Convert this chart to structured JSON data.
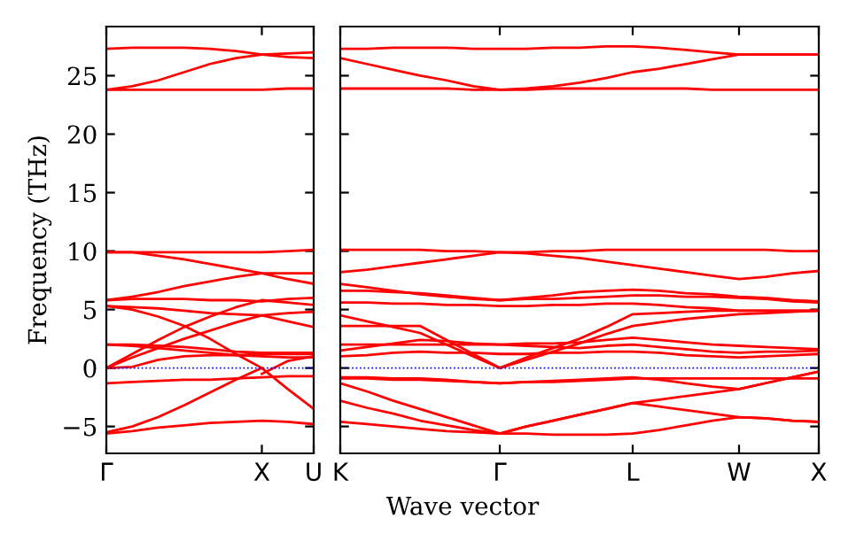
{
  "chart_data": [
    {
      "type": "line",
      "ylabel": "Frequency (THz)",
      "ylim": [
        -7.3,
        29.2
      ],
      "yticks": [
        {
          "value": -5,
          "label": "−5"
        },
        0,
        5,
        10,
        15,
        20,
        25
      ],
      "categories": [
        "Γ",
        null,
        null,
        null,
        null,
        null,
        "X",
        null,
        "U"
      ],
      "grid": false,
      "marker": "none",
      "line_style": "solid",
      "ref_lines": [
        {
          "axis": "y",
          "value": 0,
          "color": "#0000ff",
          "line_style": "dotted"
        }
      ],
      "series": [
        {
          "color": "#ff0000",
          "values": [
            27.3,
            27.4,
            27.4,
            27.4,
            27.3,
            27.1,
            26.8,
            26.6,
            26.5
          ]
        },
        {
          "color": "#ff0000",
          "values": [
            23.8,
            24.1,
            24.6,
            25.3,
            26.0,
            26.5,
            26.8,
            26.9,
            27.0
          ]
        },
        {
          "color": "#ff0000",
          "values": [
            23.8,
            23.8,
            23.8,
            23.8,
            23.8,
            23.8,
            23.8,
            23.9,
            23.9
          ]
        },
        {
          "color": "#ff0000",
          "values": [
            9.9,
            9.9,
            9.6,
            9.3,
            8.9,
            8.5,
            8.1,
            7.6,
            7.2
          ]
        },
        {
          "color": "#ff0000",
          "values": [
            9.9,
            9.9,
            9.9,
            9.9,
            9.9,
            9.9,
            9.9,
            10.0,
            10.1
          ]
        },
        {
          "color": "#ff0000",
          "values": [
            5.8,
            6.1,
            6.5,
            7.0,
            7.4,
            7.8,
            8.1,
            8.1,
            8.1
          ]
        },
        {
          "color": "#ff0000",
          "values": [
            5.8,
            5.9,
            5.9,
            5.9,
            5.8,
            5.8,
            5.7,
            5.9,
            6.0
          ]
        },
        {
          "color": "#ff0000",
          "values": [
            5.3,
            5.2,
            5.1,
            4.9,
            4.7,
            4.6,
            4.5,
            4.0,
            3.5
          ]
        },
        {
          "color": "#ff0000",
          "values": [
            0,
            1.2,
            2.4,
            3.5,
            4.4,
            5.2,
            5.8,
            5.6,
            5.4
          ]
        },
        {
          "color": "#ff0000",
          "values": [
            0,
            0.9,
            1.7,
            2.5,
            3.2,
            3.9,
            4.5,
            4.7,
            4.8
          ]
        },
        {
          "color": "#ff0000",
          "values": [
            2.0,
            2.0,
            1.9,
            1.8,
            1.6,
            1.4,
            1.3,
            1.3,
            1.3
          ]
        },
        {
          "color": "#ff0000",
          "values": [
            2.0,
            1.9,
            1.7,
            1.5,
            1.3,
            1.1,
            1.0,
            0.9,
            0.9
          ]
        },
        {
          "color": "#ff0000",
          "values": [
            0,
            0.1,
            0.7,
            1.0,
            1.1,
            1.1,
            1.2,
            1.2,
            1.2
          ]
        },
        {
          "color": "#ff0000",
          "values": [
            -1.3,
            -1.2,
            -1.1,
            -1.0,
            -1.0,
            -0.9,
            -0.8,
            -0.7,
            -0.7
          ]
        },
        {
          "color": "#ff0000",
          "values": [
            -5.6,
            -5.4,
            -5.1,
            -4.9,
            -4.7,
            -4.6,
            -4.5,
            -4.6,
            -4.8
          ]
        },
        {
          "color": "#ff0000",
          "values": [
            null,
            null,
            null,
            null,
            null,
            null,
            -0.5,
            0.6,
            1.0
          ]
        },
        {
          "color": "#ff0000",
          "values": [
            5.3,
            5.0,
            4.4,
            3.6,
            2.5,
            1.2,
            0,
            -1.8,
            -3.5
          ]
        },
        {
          "color": "#ff0000",
          "values": [
            -5.5,
            -5.0,
            -4.2,
            -3.2,
            -2.1,
            -1.0,
            0,
            null,
            null
          ]
        }
      ]
    },
    {
      "type": "line",
      "xlabel": "Wave vector",
      "ylim": [
        -7.3,
        29.2
      ],
      "tick_labels": "x",
      "categories": [
        "K",
        null,
        null,
        null,
        null,
        null,
        "Γ",
        null,
        null,
        null,
        null,
        "L",
        null,
        null,
        null,
        "W",
        null,
        null,
        "X"
      ],
      "yticks": [
        {
          "value": -5,
          "label": null
        },
        {
          "value": 0,
          "label": null
        },
        {
          "value": 5,
          "label": null
        },
        {
          "value": 10,
          "label": null
        },
        {
          "value": 15,
          "label": null
        },
        {
          "value": 20,
          "label": null
        },
        {
          "value": 25,
          "label": null
        }
      ],
      "grid": false,
      "marker": "none",
      "line_style": "solid",
      "ref_lines": [
        {
          "axis": "y",
          "value": 0,
          "color": "#0000ff",
          "line_style": "dotted"
        }
      ],
      "series": [
        {
          "color": "#ff0000",
          "values": [
            27.3,
            27.3,
            27.4,
            27.4,
            27.4,
            27.3,
            27.3,
            27.3,
            27.4,
            27.4,
            27.5,
            27.5,
            27.4,
            27.2,
            27.0,
            26.8,
            26.8,
            26.8,
            26.8
          ]
        },
        {
          "color": "#ff0000",
          "values": [
            26.5,
            26.0,
            25.5,
            25.0,
            24.6,
            24.1,
            23.8,
            23.9,
            24.1,
            24.4,
            24.8,
            25.3,
            25.6,
            26.0,
            26.4,
            26.8,
            26.8,
            26.8,
            26.8
          ]
        },
        {
          "color": "#ff0000",
          "values": [
            23.9,
            23.9,
            23.9,
            23.9,
            23.9,
            23.8,
            23.8,
            23.8,
            23.9,
            23.9,
            23.9,
            23.9,
            23.9,
            23.9,
            23.8,
            23.8,
            23.8,
            23.8,
            23.8
          ]
        },
        {
          "color": "#ff0000",
          "values": [
            10.1,
            10.1,
            10.1,
            10.1,
            10.0,
            10.0,
            9.9,
            9.9,
            10.0,
            10.0,
            10.1,
            10.1,
            10.1,
            10.1,
            10.1,
            10.1,
            10.1,
            10.0,
            10.0
          ]
        },
        {
          "color": "#ff0000",
          "values": [
            8.2,
            8.4,
            8.7,
            9.0,
            9.3,
            9.6,
            9.9,
            9.8,
            9.6,
            9.4,
            9.1,
            8.8,
            8.5,
            8.2,
            7.9,
            7.6,
            7.8,
            8.1,
            8.3
          ]
        },
        {
          "color": "#ff0000",
          "values": [
            6.6,
            6.6,
            6.5,
            6.4,
            6.2,
            6.0,
            5.8,
            6.0,
            6.2,
            6.5,
            6.6,
            6.7,
            6.6,
            6.4,
            6.3,
            6.1,
            6.0,
            5.8,
            5.7
          ]
        },
        {
          "color": "#ff0000",
          "values": [
            7.2,
            6.9,
            6.6,
            6.3,
            6.1,
            5.9,
            5.8,
            5.9,
            5.9,
            6.0,
            6.1,
            6.2,
            6.2,
            6.1,
            6.1,
            6.0,
            5.9,
            5.7,
            5.6
          ]
        },
        {
          "color": "#ff0000",
          "values": [
            5.6,
            5.6,
            5.5,
            5.5,
            5.4,
            5.4,
            5.3,
            5.3,
            5.4,
            5.4,
            5.5,
            5.5,
            5.4,
            5.2,
            5.1,
            4.9,
            4.9,
            4.9,
            4.9
          ]
        },
        {
          "color": "#ff0000",
          "values": [
            4.5,
            4.0,
            3.5,
            3.0,
            2.0,
            1.0,
            0,
            0.9,
            1.7,
            2.5,
            3.5,
            4.6,
            4.7,
            4.8,
            4.9,
            4.9,
            4.9,
            4.9,
            4.9
          ]
        },
        {
          "color": "#ff0000",
          "values": [
            3.6,
            3.6,
            3.6,
            3.6,
            2.4,
            1.2,
            0,
            0.7,
            1.4,
            2.1,
            2.9,
            3.6,
            3.9,
            4.2,
            4.4,
            4.6,
            4.7,
            4.8,
            4.9
          ]
        },
        {
          "color": "#ff0000",
          "values": [
            2.0,
            2.0,
            2.0,
            2.0,
            2.0,
            2.0,
            2.0,
            2.1,
            2.1,
            2.2,
            2.4,
            2.6,
            2.4,
            2.2,
            2.0,
            1.9,
            1.8,
            1.7,
            1.6
          ]
        },
        {
          "color": "#ff0000",
          "values": [
            1.5,
            1.8,
            2.1,
            2.4,
            2.3,
            2.1,
            2.0,
            1.9,
            1.8,
            1.7,
            1.9,
            2.0,
            1.8,
            1.6,
            1.4,
            1.3,
            1.4,
            1.4,
            1.5
          ]
        },
        {
          "color": "#ff0000",
          "values": [
            1.0,
            1.1,
            1.3,
            1.4,
            1.3,
            1.3,
            1.2,
            1.2,
            1.3,
            1.3,
            1.4,
            1.4,
            1.3,
            1.1,
            1.0,
            0.9,
            1.0,
            1.1,
            1.2
          ]
        },
        {
          "color": "#ff0000",
          "values": [
            -0.8,
            -0.8,
            -0.9,
            -0.9,
            -1.0,
            -1.2,
            -1.3,
            -1.2,
            -1.1,
            -1.0,
            -0.9,
            -0.8,
            -1.0,
            -1.3,
            -1.6,
            -1.8,
            -1.3,
            -0.8,
            -0.3
          ]
        },
        {
          "color": "#ff0000",
          "values": [
            -0.9,
            -0.9,
            -1.0,
            -1.0,
            -1.1,
            -1.2,
            -1.3,
            -1.2,
            -1.2,
            -1.1,
            -1.0,
            -0.9,
            -0.9,
            -0.9,
            -0.9,
            -0.9,
            -0.9,
            -0.9,
            -0.9
          ]
        },
        {
          "color": "#ff0000",
          "values": [
            -1.3,
            -2.0,
            -2.8,
            -3.5,
            -4.2,
            -4.9,
            -5.6,
            -5.0,
            -4.5,
            -4.0,
            -3.5,
            -3.0,
            -2.7,
            -2.4,
            -2.1,
            -1.8,
            -1.3,
            -0.8,
            -0.3
          ]
        },
        {
          "color": "#ff0000",
          "values": [
            -2.8,
            -3.4,
            -3.9,
            -4.5,
            -4.9,
            -5.3,
            -5.6,
            -5.0,
            -4.5,
            -4.0,
            -3.5,
            -3.0,
            -3.3,
            -3.6,
            -3.9,
            -4.2,
            -4.3,
            -4.5,
            -4.6
          ]
        },
        {
          "color": "#ff0000",
          "values": [
            -4.6,
            -4.8,
            -5.0,
            -5.2,
            -5.4,
            -5.5,
            -5.6,
            -5.6,
            -5.7,
            -5.7,
            -5.7,
            -5.6,
            -5.3,
            -4.9,
            -4.5,
            -4.2,
            -4.3,
            -4.5,
            -4.6
          ]
        }
      ]
    }
  ]
}
